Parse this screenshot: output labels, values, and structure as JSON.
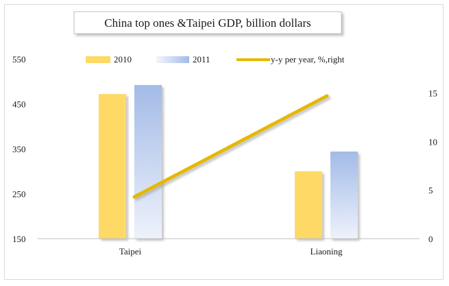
{
  "chart_data": {
    "type": "bar",
    "title": "China top ones &Taipei GDP, billion dollars",
    "categories": [
      "Taipei",
      "Liaoning"
    ],
    "series": [
      {
        "name": "2010",
        "kind": "bar",
        "axis": "left",
        "values": [
          472,
          300
        ],
        "color": "#ffd966"
      },
      {
        "name": "2011",
        "kind": "bar",
        "axis": "left",
        "values": [
          492,
          344
        ],
        "color": "#a9bfe8"
      },
      {
        "name": "y-y per year, %,right",
        "kind": "line",
        "axis": "right",
        "values": [
          4.3,
          14.7
        ],
        "color": "#e6b800"
      }
    ],
    "y_left": {
      "min": 150,
      "max": 550,
      "ticks": [
        150,
        250,
        350,
        450,
        550
      ]
    },
    "y_right": {
      "min": 0,
      "max": 18.5,
      "ticks": [
        0,
        5,
        10,
        15
      ]
    },
    "legend": "top",
    "grid": false
  }
}
